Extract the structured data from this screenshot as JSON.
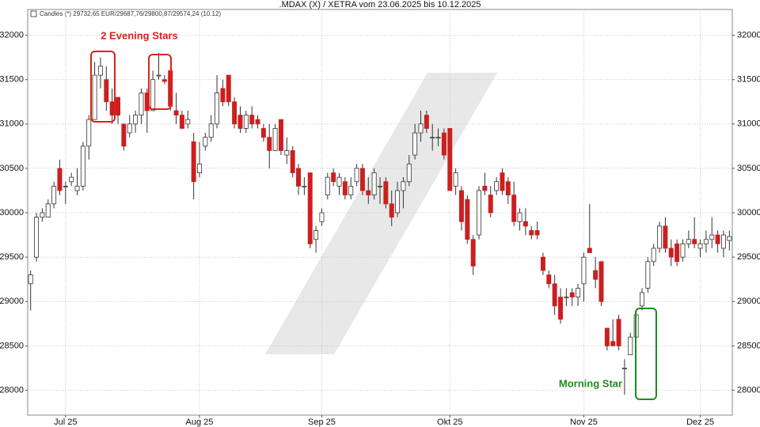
{
  "chart_data": {
    "type": "candlestick",
    "title": ".MDAX (X) / XETRA vom 23.06.2025 bis 10.12.2025",
    "legend_label": "Candles (*) 29732,65 EUR/29687,76/29800,87/29574,24 (10.12)",
    "annotations": [
      "2 Evening Stars",
      "Morning Star"
    ],
    "up_color": "#ffffff",
    "down_color": "#cc1f1f",
    "grid": true,
    "ylim": [
      27720,
      32290
    ],
    "yticks": [
      28000,
      28500,
      29000,
      29500,
      30000,
      30500,
      31000,
      31500,
      32000
    ],
    "categories": [
      null,
      null,
      null,
      null,
      null,
      null,
      "Jul 25",
      null,
      null,
      null,
      null,
      null,
      null,
      null,
      null,
      null,
      null,
      null,
      null,
      null,
      null,
      null,
      null,
      null,
      null,
      null,
      null,
      null,
      null,
      "Aug 25",
      null,
      null,
      null,
      null,
      null,
      null,
      null,
      null,
      null,
      null,
      null,
      null,
      null,
      null,
      null,
      null,
      null,
      null,
      null,
      null,
      "Sep 25",
      null,
      null,
      null,
      null,
      null,
      null,
      null,
      null,
      null,
      null,
      null,
      null,
      null,
      null,
      null,
      null,
      null,
      null,
      null,
      null,
      null,
      "Okt 25",
      null,
      null,
      null,
      null,
      null,
      null,
      null,
      null,
      null,
      null,
      null,
      null,
      null,
      null,
      null,
      null,
      null,
      null,
      null,
      null,
      null,
      null,
      "Nov 25",
      null,
      null,
      null,
      null,
      null,
      null,
      null,
      null,
      null,
      null,
      null,
      null,
      null,
      null,
      null,
      null,
      null,
      null,
      null,
      "Dez 25",
      null,
      null,
      null,
      null,
      null
    ],
    "open": [
      29200,
      29500,
      29950,
      29950,
      30100,
      30500,
      30300,
      30350,
      30250,
      30300,
      30750,
      31050,
      31550,
      31500,
      31250,
      31300,
      31000,
      30900,
      31000,
      31100,
      31350,
      31150,
      31550,
      31500,
      31600,
      31150,
      31100,
      31000,
      30800,
      30450,
      30750,
      30850,
      31000,
      31400,
      31550,
      31250,
      31100,
      30950,
      31100,
      31050,
      30950,
      30850,
      30700,
      31050,
      30650,
      30700,
      30500,
      30300,
      30450,
      29700,
      29900,
      30200,
      30450,
      30300,
      30350,
      30200,
      30350,
      30500,
      30250,
      30200,
      30300,
      30350,
      30100,
      30000,
      30250,
      30350,
      30650,
      30900,
      31100,
      30850,
      30850,
      30900,
      30950,
      30300,
      30250,
      30150,
      29700,
      29750,
      30300,
      30200,
      30250,
      30450,
      30350,
      30200,
      29900,
      29900,
      29800,
      29800,
      29500,
      29300,
      29200,
      29050,
      29050,
      29100,
      29050,
      29200,
      29600,
      29350,
      29450,
      28700,
      28550,
      28800,
      28250,
      28400,
      28600,
      28950,
      29150,
      29450,
      29600,
      29850,
      29600,
      29650,
      29500,
      29650,
      29700,
      29600,
      29650,
      29700,
      29750,
      29600,
      29687.76
    ],
    "high": [
      29350,
      30000,
      30050,
      30150,
      30350,
      30600,
      30350,
      30450,
      30500,
      30800,
      31100,
      31700,
      31750,
      31650,
      31400,
      31300,
      31000,
      31100,
      31150,
      31400,
      31400,
      31600,
      31800,
      31550,
      31600,
      31350,
      31150,
      31150,
      30900,
      30800,
      30900,
      31100,
      31550,
      31500,
      31550,
      31300,
      31200,
      31150,
      31200,
      31100,
      31000,
      31000,
      31000,
      31050,
      30850,
      30750,
      30550,
      30400,
      30450,
      29850,
      30050,
      30450,
      30500,
      30450,
      30400,
      30400,
      30550,
      30550,
      30400,
      30500,
      30400,
      30400,
      30250,
      30350,
      30400,
      30650,
      31000,
      31150,
      31150,
      31000,
      30950,
      30950,
      30950,
      30500,
      30300,
      30200,
      29750,
      30300,
      30450,
      30300,
      30400,
      30500,
      30400,
      30350,
      30050,
      30050,
      29850,
      29900,
      29550,
      29350,
      29300,
      29150,
      29150,
      29150,
      29200,
      29550,
      30100,
      29500,
      29450,
      28700,
      28800,
      28850,
      28350,
      28650,
      28900,
      29150,
      29500,
      29650,
      29900,
      29950,
      29700,
      29700,
      29700,
      29800,
      29950,
      29700,
      29800,
      29950,
      29800,
      29800,
      29800.87
    ],
    "low": [
      28900,
      29450,
      29900,
      29950,
      30050,
      30200,
      30100,
      30300,
      30200,
      30250,
      30600,
      31050,
      31400,
      31150,
      31000,
      31000,
      30700,
      30850,
      30900,
      31000,
      30900,
      31150,
      31500,
      31450,
      31150,
      31000,
      30950,
      30950,
      30150,
      30400,
      30700,
      30800,
      30950,
      31200,
      31200,
      30950,
      30900,
      30900,
      30950,
      30950,
      30800,
      30500,
      30700,
      30650,
      30550,
      30400,
      30200,
      30200,
      29600,
      29550,
      29850,
      30150,
      30300,
      30200,
      30150,
      30150,
      30300,
      30200,
      30100,
      30150,
      30100,
      30050,
      29850,
      29950,
      30050,
      30300,
      30600,
      30800,
      30900,
      30700,
      30750,
      30600,
      30250,
      30200,
      29800,
      29650,
      29300,
      29700,
      30200,
      29950,
      30200,
      30200,
      30100,
      29850,
      29800,
      29750,
      29700,
      29700,
      29300,
      29150,
      28850,
      28750,
      28950,
      28950,
      28950,
      29000,
      29550,
      29150,
      28950,
      28450,
      28500,
      28450,
      27950,
      28400,
      28600,
      28900,
      29100,
      29400,
      29550,
      29550,
      29400,
      29400,
      29450,
      29600,
      29600,
      29500,
      29550,
      29600,
      29550,
      29500,
      29574.24
    ],
    "close": [
      29300,
      29950,
      30000,
      30100,
      30300,
      30250,
      30300,
      30400,
      30300,
      30750,
      31050,
      31550,
      31650,
      31250,
      31100,
      31100,
      30750,
      31000,
      31100,
      31350,
      31150,
      31500,
      31550,
      31480,
      31200,
      31100,
      30950,
      31050,
      30350,
      30550,
      30850,
      31000,
      31350,
      31250,
      31250,
      31000,
      30950,
      31100,
      31000,
      31000,
      30850,
      30700,
      30950,
      30700,
      30700,
      30450,
      30300,
      30300,
      29650,
      29800,
      30000,
      30400,
      30350,
      30400,
      30200,
      30300,
      30500,
      30250,
      30200,
      30450,
      30300,
      30100,
      29950,
      30250,
      30350,
      30550,
      30900,
      31000,
      30950,
      30850,
      30850,
      30650,
      30250,
      30450,
      29900,
      29700,
      29400,
      30250,
      30250,
      30000,
      30350,
      30250,
      30200,
      29900,
      30000,
      29850,
      29750,
      29750,
      29350,
      29200,
      28950,
      28800,
      29050,
      29050,
      29150,
      29500,
      29550,
      29250,
      29000,
      28500,
      28500,
      28500,
      28250,
      28600,
      28850,
      29100,
      29450,
      29600,
      29850,
      29600,
      29500,
      29450,
      29650,
      29700,
      29650,
      29650,
      29700,
      29750,
      29650,
      29750,
      29732.65
    ]
  }
}
